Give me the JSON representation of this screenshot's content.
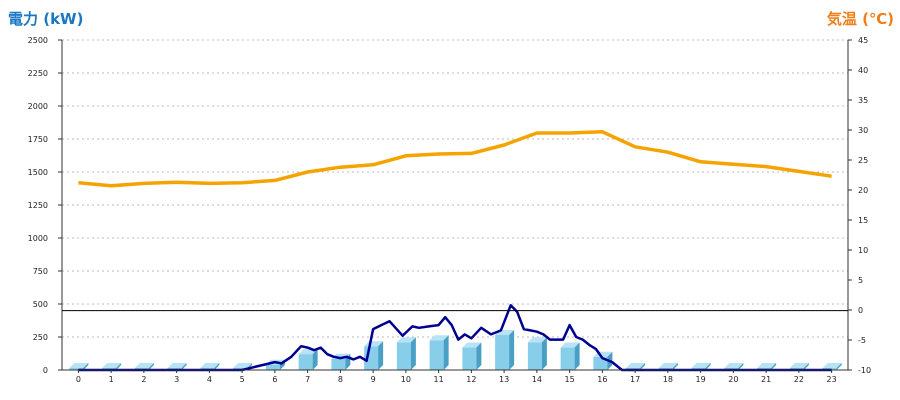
{
  "chart_data": {
    "type": "bar+line",
    "title": "",
    "left_axis": {
      "label": "電力 (kW)",
      "color": "#1a78c2",
      "ylim": [
        0,
        2500
      ],
      "ticks": [
        0,
        250,
        500,
        750,
        1000,
        1250,
        1500,
        1750,
        2000,
        2250,
        2500
      ]
    },
    "right_axis": {
      "label": "気温 (℃)",
      "color": "#ee7f1a",
      "ylim": [
        -10,
        45
      ],
      "ticks": [
        -10,
        -5,
        0,
        5,
        10,
        15,
        20,
        25,
        30,
        35,
        40,
        45
      ]
    },
    "categories": [
      "0",
      "1",
      "2",
      "3",
      "4",
      "5",
      "6",
      "7",
      "8",
      "9",
      "10",
      "11",
      "12",
      "13",
      "14",
      "15",
      "16",
      "17",
      "18",
      "19",
      "20",
      "21",
      "22",
      "23"
    ],
    "reference_line": {
      "axis": "left",
      "value": 450,
      "color": "#000000"
    },
    "grid": true,
    "series": [
      {
        "type": "bar",
        "axis": "left",
        "color": "#87ceeb",
        "values": [
          15,
          15,
          15,
          15,
          15,
          15,
          40,
          120,
          85,
          180,
          210,
          225,
          170,
          265,
          210,
          170,
          100,
          15,
          15,
          15,
          15,
          15,
          15,
          15
        ]
      },
      {
        "type": "line",
        "axis": "left",
        "color": "#000090",
        "x": [
          0,
          1,
          2,
          3,
          4,
          5,
          5.5,
          6,
          6.2,
          6.5,
          6.8,
          7,
          7.2,
          7.4,
          7.6,
          7.8,
          8,
          8.2,
          8.4,
          8.6,
          8.8,
          9,
          9.5,
          9.9,
          10.2,
          10.4,
          10.7,
          11,
          11.2,
          11.4,
          11.6,
          11.8,
          12,
          12.3,
          12.6,
          12.9,
          13.2,
          13.4,
          13.6,
          13.8,
          14,
          14.2,
          14.4,
          14.6,
          14.8,
          15,
          15.2,
          15.4,
          15.6,
          15.8,
          16,
          16.3,
          16.6,
          17,
          18,
          19,
          20,
          21,
          22,
          23
        ],
        "values": [
          0,
          0,
          0,
          0,
          0,
          0,
          30,
          60,
          50,
          100,
          180,
          170,
          150,
          170,
          120,
          100,
          90,
          100,
          80,
          100,
          70,
          310,
          370,
          260,
          330,
          320,
          330,
          340,
          400,
          340,
          230,
          270,
          240,
          320,
          270,
          300,
          490,
          440,
          310,
          300,
          290,
          270,
          230,
          230,
          230,
          340,
          250,
          230,
          190,
          160,
          90,
          60,
          0,
          0,
          0,
          0,
          0,
          0,
          0,
          0
        ]
      },
      {
        "type": "line",
        "axis": "right",
        "color": "#f5a300",
        "values": [
          21.2,
          20.7,
          21.1,
          21.3,
          21.1,
          21.2,
          21.6,
          23.0,
          23.8,
          24.2,
          25.7,
          26.0,
          26.1,
          27.5,
          29.5,
          29.5,
          29.7,
          27.2,
          26.3,
          24.7,
          24.3,
          23.9,
          23.1,
          22.3
        ]
      }
    ]
  }
}
